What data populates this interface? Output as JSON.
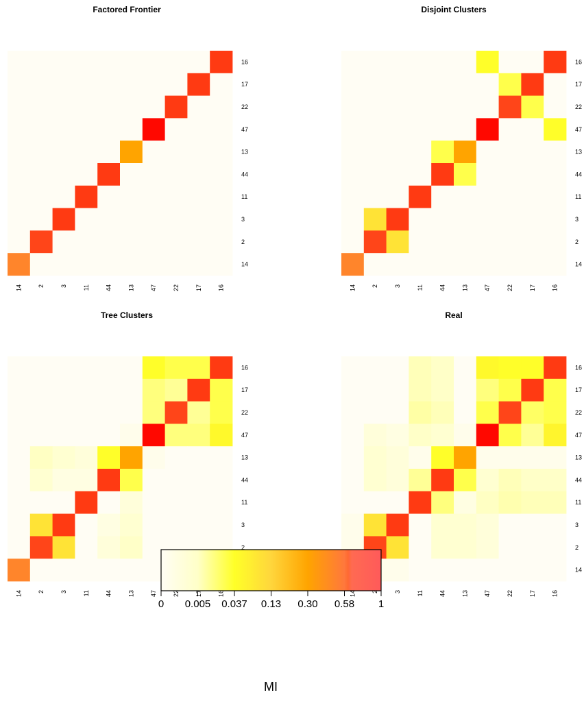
{
  "chart_data": [
    {
      "type": "heatmap",
      "title": "Factored Frontier",
      "x_labels": [
        "14",
        "2",
        "3",
        "11",
        "44",
        "13",
        "47",
        "22",
        "17",
        "16"
      ],
      "y_labels": [
        "16",
        "17",
        "22",
        "47",
        "13",
        "44",
        "11",
        "3",
        "2",
        "14"
      ],
      "values": [
        [
          0,
          0,
          0,
          0,
          0,
          0,
          0,
          0,
          0,
          0.75
        ],
        [
          0,
          0,
          0,
          0,
          0,
          0,
          0,
          0,
          0.75,
          0
        ],
        [
          0,
          0,
          0,
          0,
          0,
          0,
          0,
          0.75,
          0,
          0
        ],
        [
          0,
          0,
          0,
          0,
          0,
          0,
          0.85,
          0,
          0,
          0
        ],
        [
          0,
          0,
          0,
          0,
          0,
          0.3,
          0,
          0,
          0,
          0
        ],
        [
          0,
          0,
          0,
          0,
          0.75,
          0,
          0,
          0,
          0,
          0
        ],
        [
          0,
          0,
          0,
          0.75,
          0,
          0,
          0,
          0,
          0,
          0
        ],
        [
          0,
          0,
          0.75,
          0,
          0,
          0,
          0,
          0,
          0,
          0
        ],
        [
          0,
          0.72,
          0,
          0,
          0,
          0,
          0,
          0,
          0,
          0
        ],
        [
          0.5,
          0,
          0,
          0,
          0,
          0,
          0,
          0,
          0,
          0
        ]
      ]
    },
    {
      "type": "heatmap",
      "title": "Disjoint Clusters",
      "x_labels": [
        "14",
        "2",
        "3",
        "11",
        "44",
        "13",
        "47",
        "22",
        "17",
        "16"
      ],
      "y_labels": [
        "16",
        "17",
        "22",
        "47",
        "13",
        "44",
        "11",
        "3",
        "2",
        "14"
      ],
      "values": [
        [
          0,
          0,
          0,
          0,
          0,
          0,
          0.04,
          0,
          0,
          0.75
        ],
        [
          0,
          0,
          0,
          0,
          0,
          0,
          0,
          0.03,
          0.75,
          0
        ],
        [
          0,
          0,
          0,
          0,
          0,
          0,
          0,
          0.72,
          0.03,
          0
        ],
        [
          0,
          0,
          0,
          0,
          0,
          0,
          0.85,
          0,
          0,
          0.04
        ],
        [
          0,
          0,
          0,
          0,
          0.03,
          0.3,
          0,
          0,
          0,
          0
        ],
        [
          0,
          0,
          0,
          0,
          0.75,
          0.03,
          0,
          0,
          0,
          0
        ],
        [
          0,
          0,
          0,
          0.75,
          0,
          0,
          0,
          0,
          0,
          0
        ],
        [
          0,
          0.1,
          0.75,
          0,
          0,
          0,
          0,
          0,
          0,
          0
        ],
        [
          0,
          0.72,
          0.1,
          0,
          0,
          0,
          0,
          0,
          0,
          0
        ],
        [
          0.5,
          0,
          0,
          0,
          0,
          0,
          0,
          0,
          0,
          0
        ]
      ]
    },
    {
      "type": "heatmap",
      "title": "Tree Clusters",
      "x_labels": [
        "14",
        "2",
        "3",
        "11",
        "44",
        "13",
        "47",
        "22",
        "17",
        "16"
      ],
      "y_labels": [
        "16",
        "17",
        "22",
        "47",
        "13",
        "44",
        "11",
        "3",
        "2",
        "14"
      ],
      "values": [
        [
          0,
          0,
          0,
          0,
          0,
          0,
          0.04,
          0.03,
          0.03,
          0.75
        ],
        [
          0,
          0,
          0,
          0,
          0,
          0,
          0.02,
          0.015,
          0.75,
          0.03
        ],
        [
          0,
          0,
          0,
          0,
          0,
          0,
          0.02,
          0.72,
          0.015,
          0.03
        ],
        [
          0,
          0,
          0,
          0,
          0,
          0.001,
          0.85,
          0.02,
          0.02,
          0.05
        ],
        [
          0,
          0.006,
          0.004,
          0.003,
          0.04,
          0.3,
          0.001,
          0,
          0,
          0
        ],
        [
          0,
          0.004,
          0.002,
          0.002,
          0.75,
          0.03,
          0,
          0,
          0,
          0
        ],
        [
          0,
          0,
          0,
          0.75,
          0,
          0.003,
          0,
          0,
          0,
          0
        ],
        [
          0,
          0.1,
          0.75,
          0,
          0.002,
          0.004,
          0,
          0,
          0,
          0
        ],
        [
          0,
          0.72,
          0.1,
          0,
          0.003,
          0.005,
          0,
          0,
          0,
          0
        ],
        [
          0.5,
          0,
          0,
          0,
          0,
          0,
          0,
          0,
          0,
          0
        ]
      ]
    },
    {
      "type": "heatmap",
      "title": "Real",
      "x_labels": [
        "14",
        "2",
        "3",
        "11",
        "44",
        "13",
        "47",
        "22",
        "17",
        "16"
      ],
      "y_labels": [
        "16",
        "17",
        "22",
        "47",
        "13",
        "44",
        "11",
        "3",
        "2",
        "14"
      ],
      "values": [
        [
          0,
          0,
          0,
          0.008,
          0.005,
          0,
          0.05,
          0.04,
          0.04,
          0.75
        ],
        [
          0,
          0,
          0,
          0.008,
          0.005,
          0,
          0.02,
          0.03,
          0.75,
          0.03
        ],
        [
          0,
          0,
          0,
          0.012,
          0.008,
          0,
          0.03,
          0.72,
          0.025,
          0.03
        ],
        [
          0,
          0.003,
          0.002,
          0.005,
          0.004,
          0.001,
          0.85,
          0.03,
          0.015,
          0.06
        ],
        [
          0,
          0.004,
          0.003,
          0.001,
          0.04,
          0.3,
          0.001,
          0.001,
          0.001,
          0.001
        ],
        [
          0,
          0.004,
          0.003,
          0.015,
          0.75,
          0.03,
          0.004,
          0.008,
          0.005,
          0.005
        ],
        [
          0,
          0,
          0,
          0.75,
          0.02,
          0.002,
          0.006,
          0.01,
          0.008,
          0.008
        ],
        [
          0.001,
          0.1,
          0.75,
          0,
          0.004,
          0.004,
          0.003,
          0,
          0,
          0
        ],
        [
          0.001,
          0.72,
          0.1,
          0,
          0.004,
          0.004,
          0.003,
          0,
          0,
          0
        ],
        [
          0.5,
          0.001,
          0.001,
          0,
          0,
          0,
          0,
          0,
          0,
          0
        ]
      ]
    }
  ],
  "colorbar": {
    "label": "MI",
    "ticks": [
      {
        "label": "0",
        "value": 0
      },
      {
        "label": "0.005",
        "value": 0.005
      },
      {
        "label": "0.037",
        "value": 0.037
      },
      {
        "label": "0.13",
        "value": 0.13
      },
      {
        "label": "0.30",
        "value": 0.3
      },
      {
        "label": "0.58",
        "value": 0.58
      },
      {
        "label": "1",
        "value": 1
      }
    ]
  }
}
